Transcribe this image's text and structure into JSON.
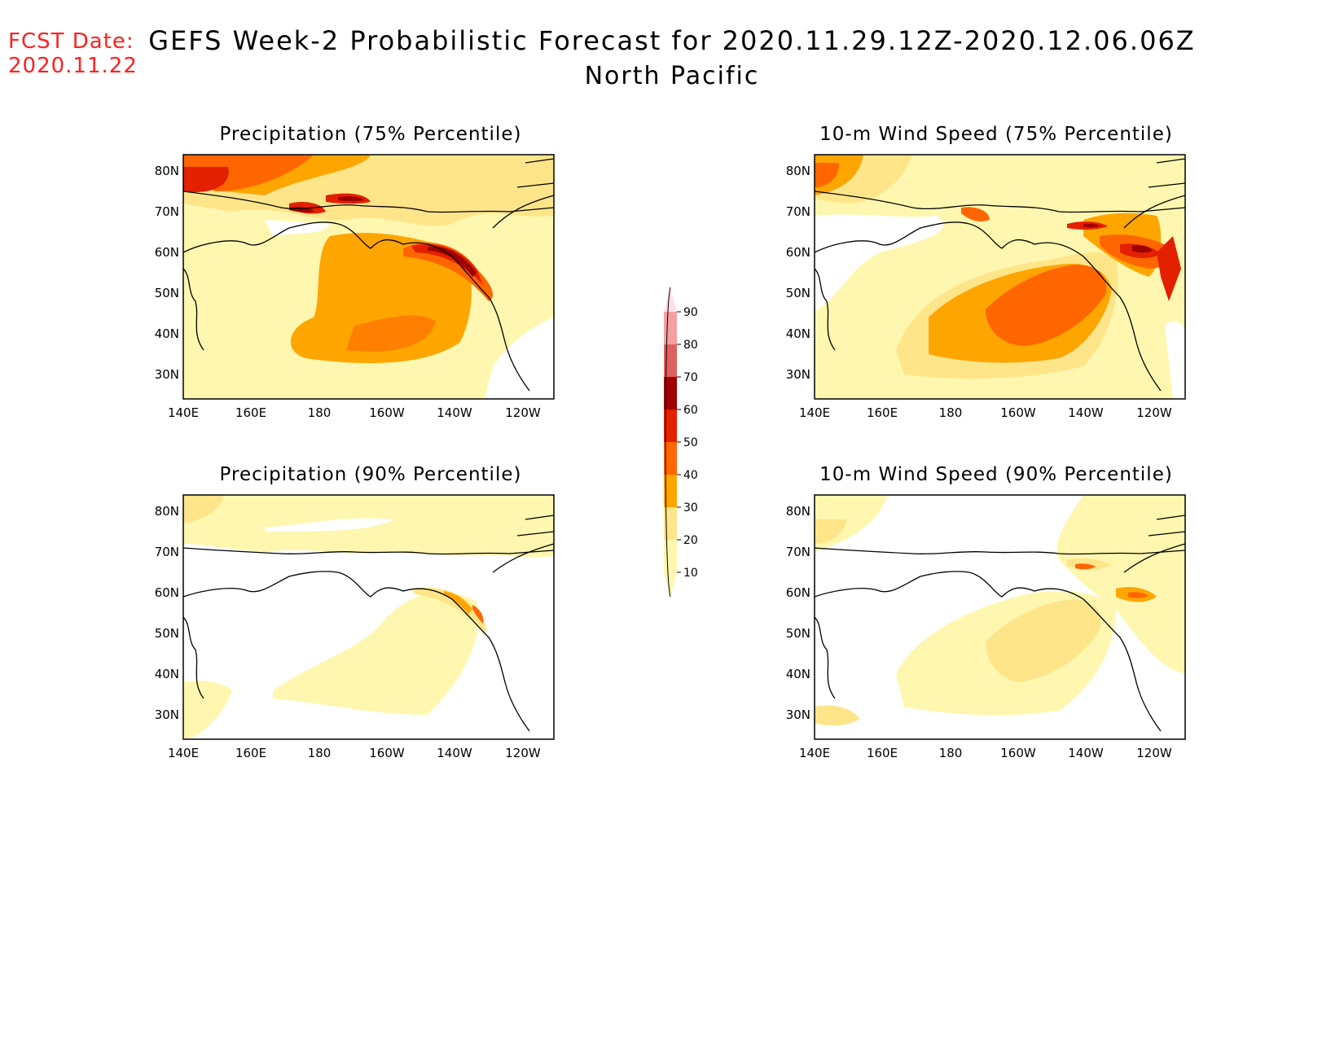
{
  "header": {
    "fcst_label": "FCST Date:",
    "fcst_date": "2020.11.22",
    "title": "GEFS Week-2 Probabilistic Forecast for 2020.11.29.12Z-2020.12.06.06Z",
    "subtitle": "North Pacific"
  },
  "axes": {
    "lon_labels": [
      "140E",
      "160E",
      "180",
      "160W",
      "140W",
      "120W"
    ],
    "lat_labels": [
      "80N",
      "70N",
      "60N",
      "50N",
      "40N",
      "30N"
    ]
  },
  "panels": [
    {
      "id": "p75",
      "title": "Precipitation (75% Percentile)"
    },
    {
      "id": "w75",
      "title": "10-m Wind Speed (75% Percentile)"
    },
    {
      "id": "p90",
      "title": "Precipitation (90% Percentile)"
    },
    {
      "id": "w90",
      "title": "10-m Wind Speed (90% Percentile)"
    }
  ],
  "colorbar": {
    "levels": [
      "10",
      "20",
      "30",
      "40",
      "50",
      "60",
      "70",
      "80",
      "90"
    ],
    "colors": [
      "#fff7b0",
      "#ffe58a",
      "#ffa500",
      "#ff6600",
      "#e32000",
      "#a00000",
      "#e06060",
      "#f4a0a0",
      "#ffe0e8"
    ]
  },
  "colors": {
    "lvl10": "#fff7b0",
    "lvl20": "#ffe58a",
    "lvl30": "#ffa500",
    "lvl40": "#ff6600",
    "lvl50": "#e32000",
    "lvl60": "#a00000",
    "lvl70": "#e06060",
    "fcst_text": "#ff2020"
  }
}
